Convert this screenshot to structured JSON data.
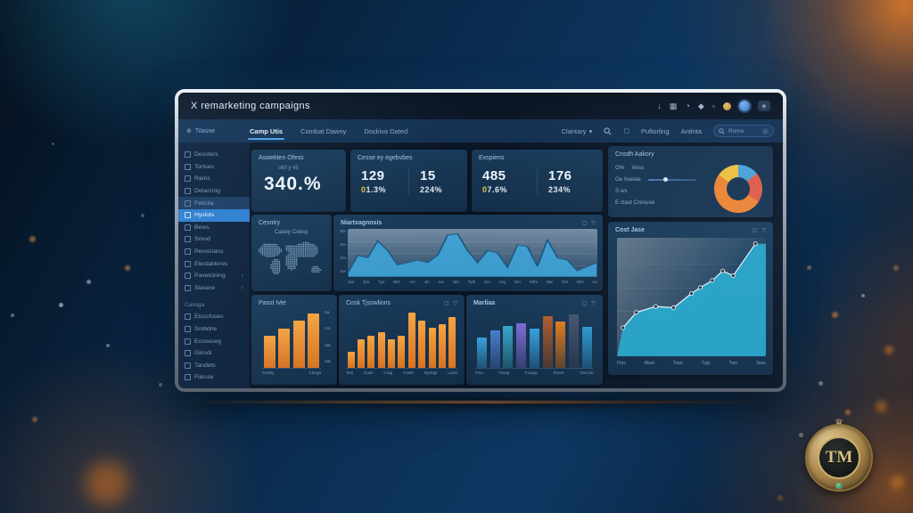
{
  "window": {
    "title": "X remarketing campaigns",
    "titlebar_icons": [
      "download-icon",
      "extensions-icon",
      "history-icon",
      "shield-icon",
      "box-icon",
      "profile-orange",
      "profile-blue",
      "menu-icon"
    ]
  },
  "icons": {
    "brand": "⊕",
    "caret": "▾",
    "expand": "▢",
    "filter": "▽",
    "chevron": "›"
  },
  "navbar": {
    "brand": "Tilasne",
    "tabs": [
      {
        "label": "Camp Utis",
        "active": true
      },
      {
        "label": "Combat Dawny",
        "active": false
      },
      {
        "label": "Dockiva Dated",
        "active": false
      }
    ],
    "right": {
      "menu": "Clantary",
      "links": [
        "Puftorling",
        "Antinta"
      ],
      "search_value": "Rome"
    }
  },
  "sidebar": {
    "groups": [
      {
        "header": "",
        "items": [
          {
            "label": "Dessters"
          },
          {
            "label": "Tortses"
          },
          {
            "label": "Rams"
          },
          {
            "label": "Detarcing"
          },
          {
            "label": "Felictia",
            "highlight": "muted"
          },
          {
            "label": "Hyslots",
            "highlight": "active"
          },
          {
            "label": "Bews"
          },
          {
            "label": "Smod"
          },
          {
            "label": "Pesvicians"
          },
          {
            "label": "Elestableres"
          },
          {
            "label": "Paveicining",
            "chevron": true
          },
          {
            "label": "Slasere",
            "chevron": true
          }
        ]
      },
      {
        "header": "Casoga",
        "items": [
          {
            "label": "Eisscfuses"
          },
          {
            "label": "Smbdne"
          },
          {
            "label": "Ecoseceg"
          },
          {
            "label": "Ginsdi"
          },
          {
            "label": "Tandets"
          },
          {
            "label": "Filesse"
          }
        ]
      }
    ]
  },
  "cards": {
    "kpi1": {
      "label": "Aswekten Ofess",
      "sub": "s60 y 45",
      "value": "340.%"
    },
    "kpi2": {
      "label": "Cesse ey egebvbes",
      "cols": [
        {
          "value": "129",
          "badge": "0",
          "delta": "1.3%"
        },
        {
          "value": "15",
          "badge": "",
          "delta": "224%"
        }
      ]
    },
    "kpi3": {
      "label": "Exspiens",
      "cols": [
        {
          "value": "485",
          "badge": "0",
          "delta": "7.6%"
        },
        {
          "value": "176",
          "badge": "",
          "delta": "234%"
        }
      ]
    },
    "audience": {
      "title": "Cnsdh Aakory",
      "rows": [
        {
          "label": "O%",
          "value": "Vess"
        },
        {
          "label": "Ge huesie",
          "slider": true
        },
        {
          "label": "S ws"
        },
        {
          "label": "E clast Cresuse"
        }
      ]
    },
    "country": {
      "title": "Cesntry",
      "subtitle": "Casey Coesy"
    },
    "area": {
      "title": "Niartxagnnsis"
    },
    "big": {
      "title": "Cost Jase"
    },
    "barA": {
      "title": "Passt Ivte"
    },
    "barB": {
      "title": "Cosk Tjsswlions"
    },
    "barC": {
      "title": "Marliaa"
    }
  },
  "chart_data": [
    {
      "id": "donut",
      "type": "pie",
      "title": "Cnsdh Aakory",
      "segments": [
        {
          "name": "blue",
          "color": "#4aa3d8",
          "value": 14
        },
        {
          "name": "salmon",
          "color": "#e25c45",
          "value": 20
        },
        {
          "name": "orange",
          "color": "#ef8431",
          "value": 51
        },
        {
          "name": "yellow",
          "color": "#f0c23c",
          "value": 15
        }
      ]
    },
    {
      "id": "area",
      "type": "area",
      "title": "Niartxagnnsis",
      "y_ticks": [
        "5m",
        "4m",
        "2m",
        "1m"
      ],
      "x_ticks": [
        "Jan",
        "Sm",
        "Tya",
        "Mm",
        "Am",
        "Jm",
        "Aw",
        "Nm",
        "Tyle",
        "Sm",
        "Arg",
        "Sm",
        "Wfm",
        "Mw",
        "Om",
        "Mm",
        "Av"
      ],
      "values": [
        0.08,
        0.45,
        0.4,
        0.75,
        0.55,
        0.25,
        0.3,
        0.35,
        0.3,
        0.45,
        0.87,
        0.9,
        0.55,
        0.3,
        0.55,
        0.5,
        0.2,
        0.67,
        0.63,
        0.22,
        0.78,
        0.4,
        0.35,
        0.13,
        0.22,
        0.3
      ],
      "ylim": [
        0,
        1
      ],
      "fill": "#3ea2d6",
      "stroke": "#1d5a85"
    },
    {
      "id": "big",
      "type": "line",
      "title": "Cost Jase",
      "x_ticks": [
        "Fles",
        "Msat",
        "Tose",
        "Tgly",
        "Twn",
        "Jase"
      ],
      "points": [
        [
          4,
          24
        ],
        [
          13,
          37
        ],
        [
          26,
          42
        ],
        [
          38,
          41
        ],
        [
          50,
          53
        ],
        [
          56,
          58
        ],
        [
          64,
          64
        ],
        [
          71,
          72
        ],
        [
          78,
          68
        ],
        [
          93,
          95
        ]
      ],
      "ylim": [
        0,
        100
      ],
      "fill": "#26a7cb",
      "stroke": "#eaf4fa"
    },
    {
      "id": "barA",
      "type": "bar",
      "title": "Passt Ivte",
      "x_ticks": [
        "Cresty",
        "Clorga"
      ],
      "y_ticks": [
        "5a",
        "4m",
        "3at",
        "2at"
      ],
      "values": [
        0.55,
        0.66,
        0.8,
        0.92
      ],
      "color": "#ef8124",
      "ylim": [
        0,
        1
      ]
    },
    {
      "id": "barB",
      "type": "bar",
      "title": "Cosk Tjsswlions",
      "x_ticks": [
        "Tesi",
        "Cuss",
        "Crag",
        "Cssth",
        "Nyskigi",
        "Lassi"
      ],
      "values": [
        0.28,
        0.48,
        0.54,
        0.6,
        0.48,
        0.54,
        0.94,
        0.8,
        0.68,
        0.74,
        0.86
      ],
      "color": "#ef8124",
      "ylim": [
        0,
        1
      ]
    },
    {
      "id": "barC",
      "type": "bar",
      "title": "Marliaa",
      "x_ticks": [
        "Fica",
        "Tuwig",
        "Fxuiga",
        "Tszurt",
        "Txzczar"
      ],
      "bars": [
        {
          "v": 0.52,
          "color": "#3aa0dc"
        },
        {
          "v": 0.63,
          "color": "#4b7fd0"
        },
        {
          "v": 0.71,
          "color": "#38a8c8"
        },
        {
          "v": 0.76,
          "color": "#7a6ed2"
        },
        {
          "v": 0.66,
          "color": "#3aa0dc"
        },
        {
          "v": 0.88,
          "color": "#b05c30"
        },
        {
          "v": 0.79,
          "color": "#e07c20"
        },
        {
          "v": 0.91,
          "color": "#46566e"
        },
        {
          "v": 0.7,
          "color": "#2f9ad2"
        }
      ],
      "ylim": [
        0,
        1
      ]
    }
  ],
  "emblem": {
    "text": "TM"
  }
}
